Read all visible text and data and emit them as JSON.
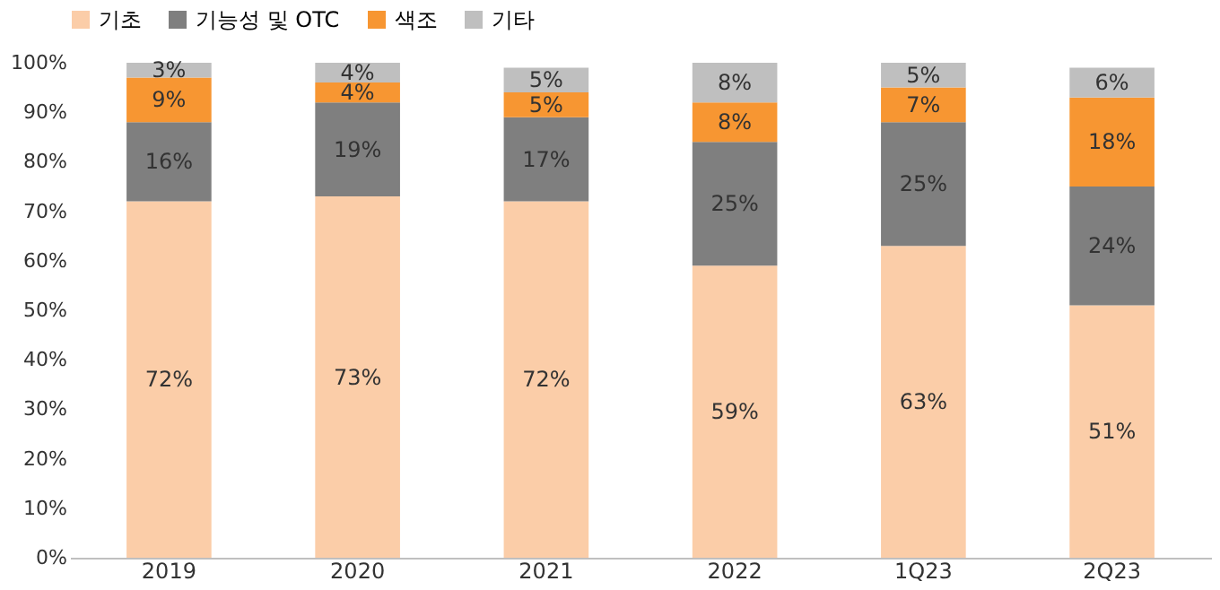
{
  "chart_data": {
    "type": "bar",
    "stacked": true,
    "legend": "top",
    "grid": false,
    "categories": [
      "2019",
      "2020",
      "2021",
      "2022",
      "1Q23",
      "2Q23"
    ],
    "ylim": [
      0,
      100
    ],
    "yticks": [
      {
        "value": 0,
        "label": "0%"
      },
      {
        "value": 10,
        "label": "10%"
      },
      {
        "value": 20,
        "label": "20%"
      },
      {
        "value": 30,
        "label": "30%"
      },
      {
        "value": 40,
        "label": "40%"
      },
      {
        "value": 50,
        "label": "50%"
      },
      {
        "value": 60,
        "label": "60%"
      },
      {
        "value": 70,
        "label": "70%"
      },
      {
        "value": 80,
        "label": "80%"
      },
      {
        "value": 90,
        "label": "90%"
      },
      {
        "value": 100,
        "label": "100%"
      }
    ],
    "series": [
      {
        "name": "기초",
        "color": "#fbcda8",
        "values": [
          72,
          73,
          72,
          59,
          63,
          51
        ],
        "value_labels": [
          "72%",
          "73%",
          "72%",
          "59%",
          "63%",
          "51%"
        ]
      },
      {
        "name": "기능성 및 OTC",
        "color": "#7f7f7f",
        "values": [
          16,
          19,
          17,
          25,
          25,
          24
        ],
        "value_labels": [
          "16%",
          "19%",
          "17%",
          "25%",
          "25%",
          "24%"
        ]
      },
      {
        "name": "색조",
        "color": "#f79632",
        "values": [
          9,
          4,
          5,
          8,
          7,
          18
        ],
        "value_labels": [
          "9%",
          "4%",
          "5%",
          "8%",
          "7%",
          "18%"
        ]
      },
      {
        "name": "기타",
        "color": "#bfbfbf",
        "values": [
          3,
          4,
          5,
          8,
          5,
          6
        ],
        "value_labels": [
          "3%",
          "4%",
          "5%",
          "8%",
          "5%",
          "6%"
        ]
      }
    ]
  }
}
